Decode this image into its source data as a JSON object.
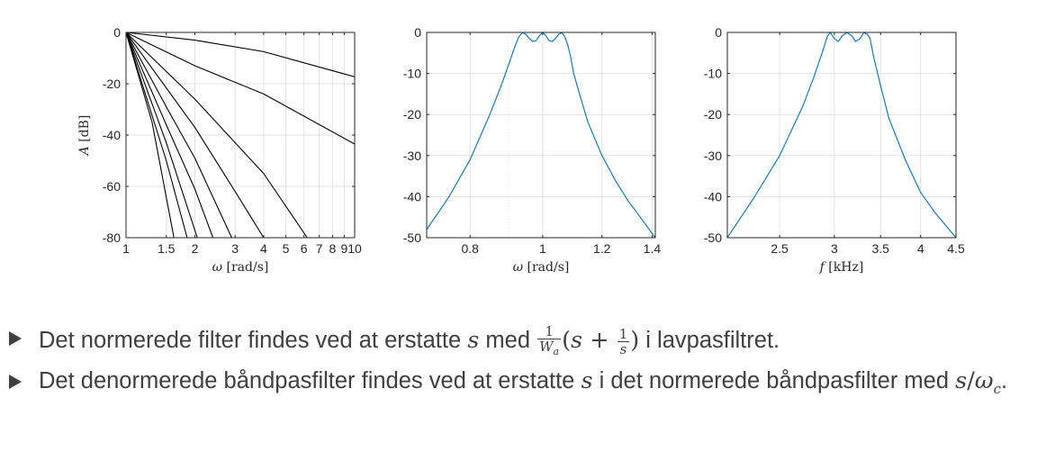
{
  "chart_data": [
    {
      "type": "line",
      "xscale": "log",
      "xlim": [
        1,
        10
      ],
      "ylim": [
        -80,
        0
      ],
      "grid": true,
      "xticks": [
        1,
        1.5,
        2,
        3,
        4,
        5,
        6,
        7,
        8,
        9,
        10
      ],
      "xticklabels": [
        "1",
        "1.5",
        "2",
        "3",
        "4",
        "5",
        "6",
        "7",
        "8",
        "9",
        "10"
      ],
      "yticks": [
        0,
        -20,
        -40,
        -60,
        -80
      ],
      "yticklabels": [
        "0",
        "-20",
        "-40",
        "-60",
        "-80"
      ],
      "xlabel": "ω [rad/s]",
      "ylabel": "A [dB]",
      "line_color": "#000000",
      "series": [
        {
          "x": [
            1,
            2,
            4,
            10
          ],
          "y": [
            0,
            -3.0,
            -7.5,
            -17.3
          ]
        },
        {
          "x": [
            1,
            2,
            4,
            10
          ],
          "y": [
            0,
            -13.0,
            -24.0,
            -43.5
          ]
        },
        {
          "x": [
            1,
            2,
            4,
            6.2
          ],
          "y": [
            0,
            -26.0,
            -55.0,
            -80
          ]
        },
        {
          "x": [
            1,
            2,
            3,
            4.0
          ],
          "y": [
            0,
            -37.0,
            -62.0,
            -80
          ]
        },
        {
          "x": [
            1,
            1.5,
            2,
            2.9
          ],
          "y": [
            0,
            -29.0,
            -49.0,
            -80
          ]
        },
        {
          "x": [
            1,
            1.5,
            2,
            2.4
          ],
          "y": [
            0,
            -36.0,
            -61.0,
            -80
          ]
        },
        {
          "x": [
            1,
            1.5,
            2.05
          ],
          "y": [
            0,
            -43.0,
            -80
          ]
        },
        {
          "x": [
            1,
            1.5,
            1.85
          ],
          "y": [
            0,
            -50.0,
            -80
          ]
        },
        {
          "x": [
            1,
            1.3,
            1.62
          ],
          "y": [
            0,
            -35.0,
            -80
          ]
        }
      ]
    },
    {
      "type": "line",
      "xscale": "log",
      "xlim": [
        0.7,
        1.414
      ],
      "ylim": [
        -50,
        0
      ],
      "grid": true,
      "xticks": [
        0.8,
        1,
        1.2,
        1.4
      ],
      "xticklabels": [
        "0.8",
        "1",
        "1.2",
        "1.4"
      ],
      "yticks": [
        0,
        -10,
        -20,
        -30,
        -40,
        -50
      ],
      "yticklabels": [
        "0",
        "-10",
        "-20",
        "-30",
        "-40",
        "-50"
      ],
      "xlabel": "ω [rad/s]",
      "ylabel": "",
      "line_color": "#0072bd",
      "series": [
        {
          "x": [
            0.7,
            0.75,
            0.8,
            0.85,
            0.88,
            0.9,
            0.92,
            0.93,
            0.94,
            0.95,
            0.96,
            0.97,
            0.98,
            0.99,
            1.0,
            1.01,
            1.02,
            1.03,
            1.04,
            1.05,
            1.06,
            1.07,
            1.08,
            1.09,
            1.1,
            1.12,
            1.15,
            1.2,
            1.25,
            1.3,
            1.35,
            1.414
          ],
          "y": [
            -48,
            -40,
            -31,
            -20,
            -13,
            -8,
            -3,
            -1,
            0,
            -0.5,
            -1.5,
            -2.2,
            -2.0,
            -0.8,
            0,
            -0.8,
            -2.0,
            -2.2,
            -1.5,
            -0.5,
            0,
            -1,
            -3,
            -6,
            -10,
            -15,
            -22,
            -30,
            -36,
            -41,
            -45,
            -50
          ]
        }
      ]
    },
    {
      "type": "line",
      "xscale": "log",
      "xlim": [
        2.1,
        4.5
      ],
      "ylim": [
        -50,
        0
      ],
      "grid": true,
      "xticks": [
        2.5,
        3,
        3.5,
        4,
        4.5
      ],
      "xticklabels": [
        "2.5",
        "3",
        "3.5",
        "4",
        "4.5"
      ],
      "yticks": [
        0,
        -10,
        -20,
        -30,
        -40,
        -50
      ],
      "yticklabels": [
        "0",
        "-10",
        "-20",
        "-30",
        "-40",
        "-50"
      ],
      "xlabel": "f [kHz]",
      "ylabel": "",
      "line_color": "#0072bd",
      "series": [
        {
          "x": [
            2.1,
            2.3,
            2.5,
            2.7,
            2.8,
            2.88,
            2.93,
            2.96,
            3.0,
            3.04,
            3.08,
            3.13,
            3.18,
            3.22,
            3.27,
            3.31,
            3.35,
            3.38,
            3.42,
            3.5,
            3.6,
            3.8,
            4.0,
            4.2,
            4.5
          ],
          "y": [
            -50,
            -40,
            -30,
            -18,
            -11,
            -5,
            -1,
            0,
            -1.5,
            -2.2,
            -0.8,
            0,
            -0.8,
            -2.2,
            -1.5,
            0,
            -0.5,
            -1.5,
            -6,
            -13,
            -21,
            -31,
            -39,
            -44,
            -50
          ]
        }
      ]
    }
  ],
  "bullets": [
    {
      "pre": "Det normerede filter findes ved at erstatte ",
      "var_s": "s",
      "mid": " med ",
      "frac1_num": "1",
      "frac1_den_base": "W",
      "frac1_den_sub": "a",
      "expr_open": "(",
      "expr_s": "s",
      "expr_plus": " + ",
      "frac2_num": "1",
      "frac2_den": "s",
      "expr_close": ")",
      "post": " i lavpasfiltret."
    },
    {
      "pre": "Det denormerede båndpasfilter findes ved at erstatte ",
      "var_s": "s",
      "post": " i det normerede båndpasfilter med ",
      "expr_s": "s",
      "expr_slash": "/",
      "expr_omega": "ω",
      "expr_omega_sub": "c",
      "expr_end": "."
    }
  ]
}
